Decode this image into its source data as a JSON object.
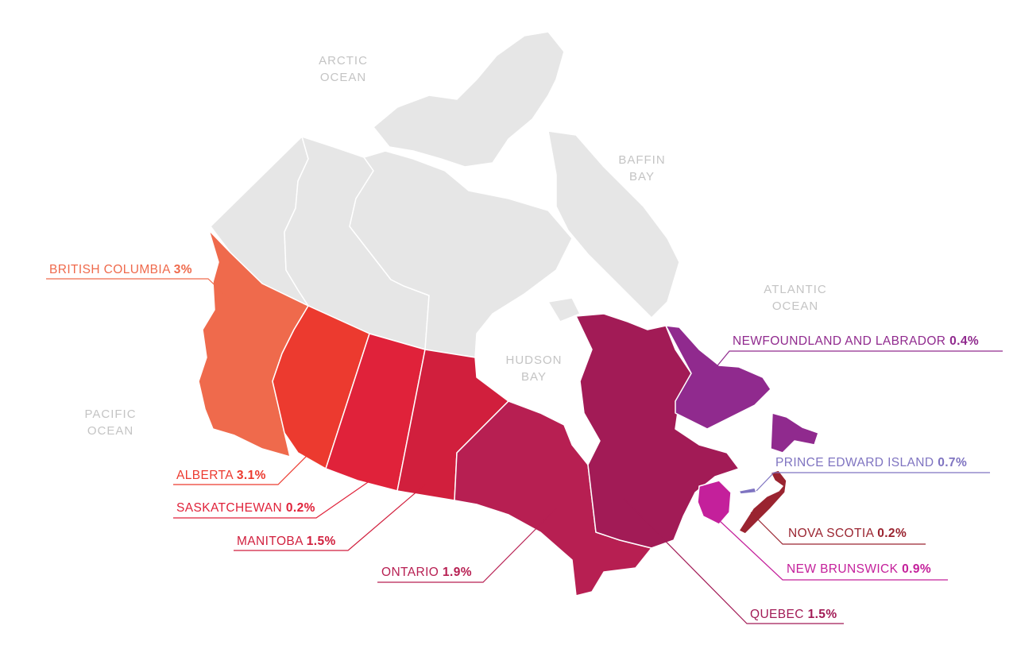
{
  "colors": {
    "background": "#ffffff",
    "northern_territories": "#e6e6e6",
    "water_label": "#c4c4c4",
    "british_columbia": "#ef6a4c",
    "alberta": "#ec3a2f",
    "saskatchewan": "#e0223a",
    "manitoba": "#d11f3d",
    "ontario": "#b71f52",
    "quebec": "#a21b56",
    "newfoundland_and_labrador": "#902a8e",
    "prince_edward_island": "#7f74c1",
    "nova_scotia": "#9a2430",
    "new_brunswick": "#c4209b"
  },
  "water_bodies": {
    "arctic": [
      "ARCTIC",
      "OCEAN"
    ],
    "baffin": [
      "BAFFIN",
      "BAY"
    ],
    "atlantic": [
      "ATLANTIC",
      "OCEAN"
    ],
    "hudson": [
      "HUDSON",
      "BAY"
    ],
    "pacific": [
      "PACIFIC",
      "OCEAN"
    ]
  },
  "regions": [
    {
      "key": "british_columbia",
      "name": "BRITISH COLUMBIA",
      "value": "3%",
      "percent": 3.0
    },
    {
      "key": "alberta",
      "name": "ALBERTA",
      "value": "3.1%",
      "percent": 3.1
    },
    {
      "key": "saskatchewan",
      "name": "SASKATCHEWAN",
      "value": "0.2%",
      "percent": 0.2
    },
    {
      "key": "manitoba",
      "name": "MANITOBA",
      "value": "1.5%",
      "percent": 1.5
    },
    {
      "key": "ontario",
      "name": "ONTARIO",
      "value": "1.9%",
      "percent": 1.9
    },
    {
      "key": "quebec",
      "name": "QUEBEC",
      "value": "1.5%",
      "percent": 1.5
    },
    {
      "key": "newfoundland_and_labrador",
      "name": "NEWFOUNDLAND AND LABRADOR",
      "value": "0.4%",
      "percent": 0.4
    },
    {
      "key": "prince_edward_island",
      "name": "PRINCE EDWARD ISLAND",
      "value": "0.7%",
      "percent": 0.7
    },
    {
      "key": "nova_scotia",
      "name": "NOVA SCOTIA",
      "value": "0.2%",
      "percent": 0.2
    },
    {
      "key": "new_brunswick",
      "name": "NEW BRUNSWICK",
      "value": "0.9%",
      "percent": 0.9
    }
  ]
}
